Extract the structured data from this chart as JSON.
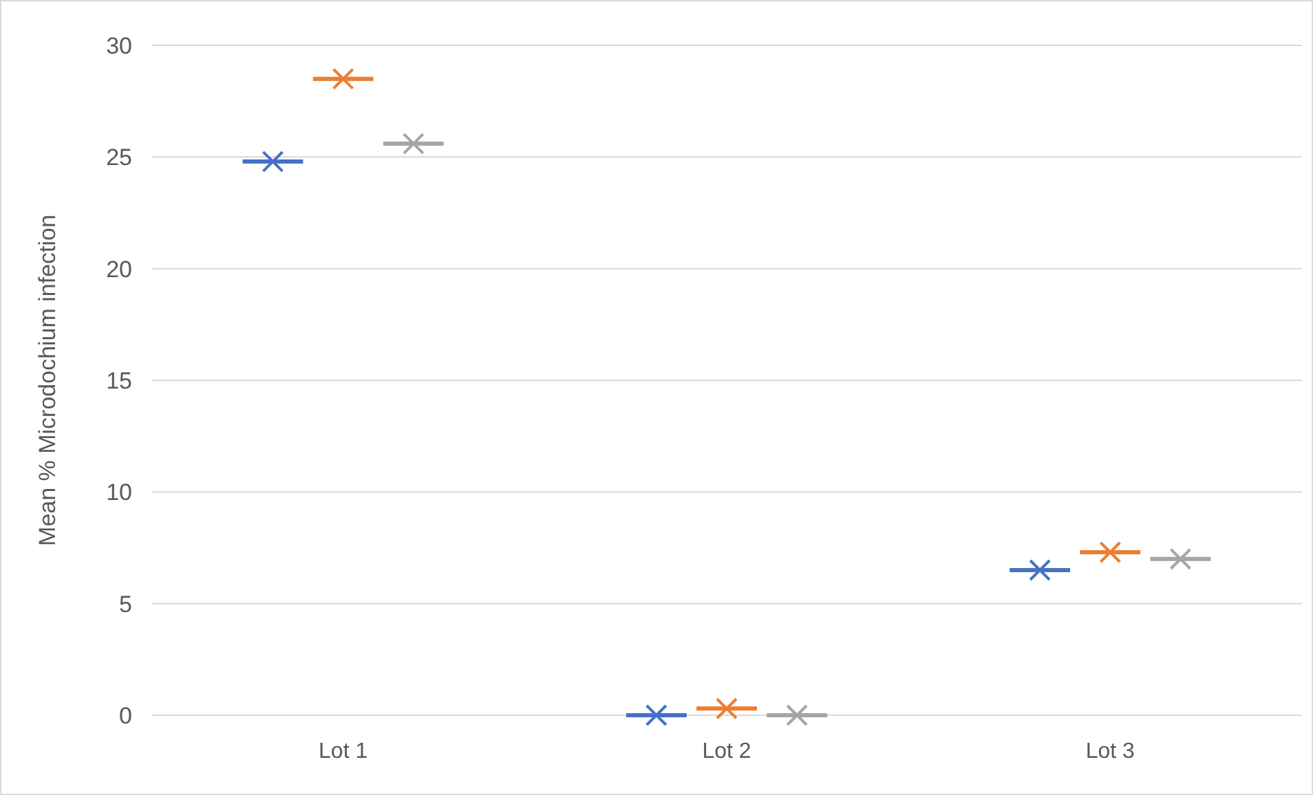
{
  "chart_data": {
    "type": "box",
    "ylabel": "Mean % Microdochium infection",
    "categories": [
      "Lot 1",
      "Lot 2",
      "Lot 3"
    ],
    "ylim": [
      0,
      30
    ],
    "yticks": [
      0,
      5,
      10,
      15,
      20,
      25,
      30
    ],
    "grid": "y",
    "series": [
      {
        "color": "#4472c4",
        "boxes": [
          {
            "low": 24.8,
            "q1": 24.8,
            "median": 24.8,
            "q3": 24.8,
            "high": 24.8,
            "mean": 24.8
          },
          {
            "low": 0,
            "q1": 0,
            "median": 0,
            "q3": 0,
            "high": 0,
            "mean": 0
          },
          {
            "low": 6.5,
            "q1": 6.5,
            "median": 6.5,
            "q3": 6.5,
            "high": 6.5,
            "mean": 6.5
          }
        ]
      },
      {
        "color": "#ed7d31",
        "boxes": [
          {
            "low": 28.5,
            "q1": 28.5,
            "median": 28.5,
            "q3": 28.5,
            "high": 28.5,
            "mean": 28.5
          },
          {
            "low": 0.3,
            "q1": 0.3,
            "median": 0.3,
            "q3": 0.3,
            "high": 0.3,
            "mean": 0.3
          },
          {
            "low": 7.3,
            "q1": 7.3,
            "median": 7.3,
            "q3": 7.3,
            "high": 7.3,
            "mean": 7.3
          }
        ]
      },
      {
        "color": "#a5a5a5",
        "boxes": [
          {
            "low": 25.6,
            "q1": 25.6,
            "median": 25.6,
            "q3": 25.6,
            "high": 25.6,
            "mean": 25.6
          },
          {
            "low": 0,
            "q1": 0,
            "median": 0,
            "q3": 0,
            "high": 0,
            "mean": 0
          },
          {
            "low": 7,
            "q1": 7,
            "median": 7,
            "q3": 7,
            "high": 7,
            "mean": 7
          }
        ]
      }
    ]
  }
}
